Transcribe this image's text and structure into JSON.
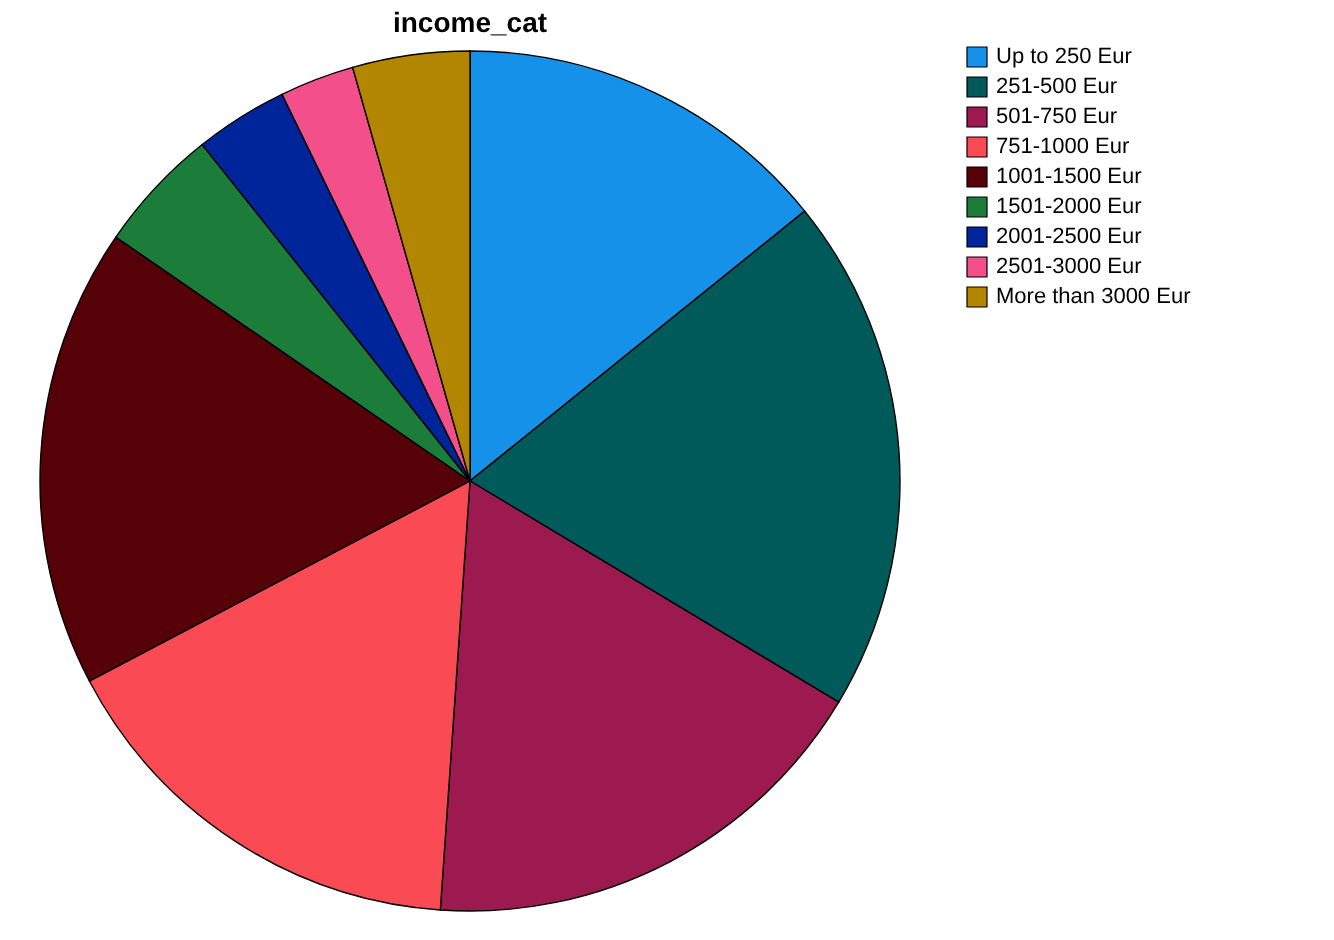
{
  "chart_data": {
    "type": "pie",
    "title": "income_cat",
    "categories": [
      "Up to 250 Eur",
      "251-500 Eur",
      "501-750 Eur",
      "751-1000 Eur",
      "1001-1500 Eur",
      "1501-2000 Eur",
      "2001-2500 Eur",
      "2501-3000 Eur",
      "More than 3000 Eur"
    ],
    "values": [
      14.2,
      19.4,
      17.5,
      16.2,
      17.3,
      4.7,
      3.5,
      2.8,
      4.4
    ],
    "colors": [
      "#1591ea",
      "#005a5a",
      "#9c1a50",
      "#fa4b55",
      "#560008",
      "#1c7d3a",
      "#00259a",
      "#f24f8b",
      "#b38600"
    ],
    "legend": "top right"
  }
}
